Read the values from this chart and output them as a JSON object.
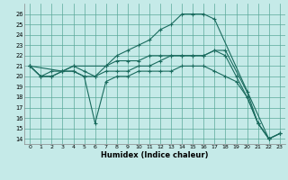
{
  "title": "",
  "xlabel": "Humidex (Indice chaleur)",
  "bg_color": "#c5eae8",
  "grid_color": "#5ba89a",
  "line_color": "#1a6b5e",
  "xlim": [
    -0.5,
    23.5
  ],
  "ylim": [
    13.5,
    27
  ],
  "yticks": [
    14,
    15,
    16,
    17,
    18,
    19,
    20,
    21,
    22,
    23,
    24,
    25,
    26
  ],
  "xticks": [
    0,
    1,
    2,
    3,
    4,
    5,
    6,
    7,
    8,
    9,
    10,
    11,
    12,
    13,
    14,
    15,
    16,
    17,
    18,
    19,
    20,
    21,
    22,
    23
  ],
  "lines": [
    {
      "x": [
        0,
        1,
        2,
        3,
        4,
        5,
        6,
        7,
        8,
        9,
        10,
        11,
        12,
        13,
        14,
        15,
        16,
        17,
        22
      ],
      "y": [
        21,
        20,
        20.5,
        20.5,
        21,
        20.5,
        20,
        21,
        22,
        22.5,
        23,
        23.5,
        24.5,
        25,
        26,
        26,
        26,
        25.5,
        14
      ]
    },
    {
      "x": [
        0,
        3,
        4,
        7,
        8,
        9,
        10,
        11,
        12,
        13,
        14,
        15,
        16,
        17,
        18,
        20,
        21,
        22,
        23
      ],
      "y": [
        21,
        20.5,
        21,
        21,
        21.5,
        21.5,
        21.5,
        22,
        22,
        22,
        22,
        22,
        22,
        22.5,
        22.5,
        18.5,
        15.5,
        14,
        14.5
      ]
    },
    {
      "x": [
        0,
        1,
        2,
        3,
        4,
        5,
        6,
        7,
        8,
        9,
        10,
        11,
        12,
        13,
        14,
        15,
        16,
        17,
        18,
        19,
        20,
        21,
        22,
        23
      ],
      "y": [
        21,
        20,
        20,
        20.5,
        20.5,
        20,
        15.5,
        19.5,
        20,
        20,
        20.5,
        20.5,
        20.5,
        20.5,
        21,
        21,
        21,
        20.5,
        20,
        19.5,
        18,
        15.5,
        14,
        14.5
      ]
    },
    {
      "x": [
        0,
        1,
        2,
        3,
        4,
        5,
        6,
        7,
        8,
        9,
        10,
        11,
        12,
        13,
        14,
        15,
        16,
        17,
        18,
        19,
        20,
        21,
        22,
        23
      ],
      "y": [
        21,
        20,
        20,
        20.5,
        20.5,
        20,
        20,
        20.5,
        20.5,
        20.5,
        21,
        21,
        21.5,
        22,
        22,
        22,
        22,
        22.5,
        22,
        20,
        18,
        15.5,
        14,
        14.5
      ]
    }
  ]
}
